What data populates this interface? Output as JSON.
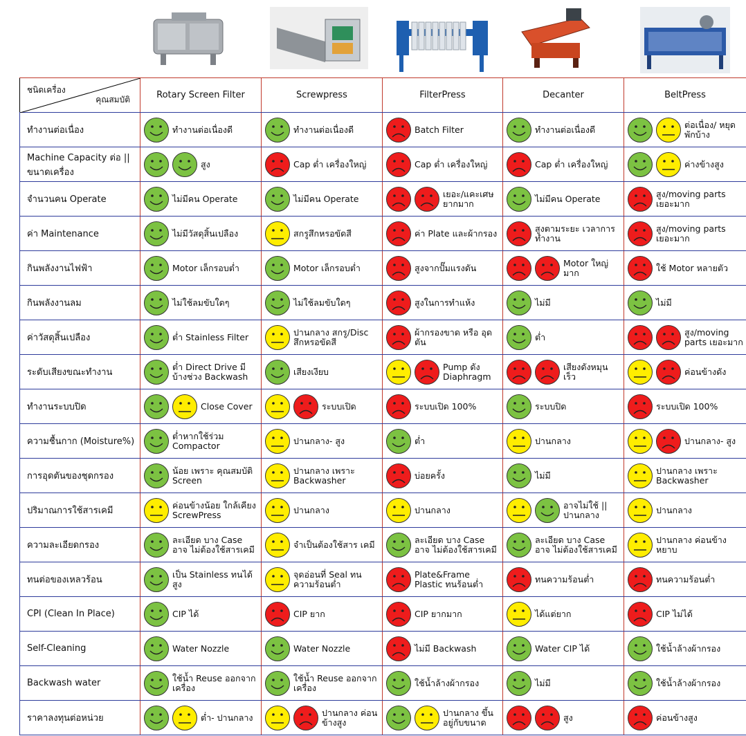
{
  "header": {
    "corner_top": "ชนิดเครื่อง",
    "corner_bottom": "คุณสมบัติ",
    "machines": [
      "Rotary Screen Filter",
      "Screwpress",
      "FilterPress",
      "Decanter",
      "BeltPress"
    ]
  },
  "colors": {
    "good": "#7cc242",
    "medium": "#ffed00",
    "bad": "#ee1c1c"
  },
  "rows": [
    {
      "label": "ทำงานต่อเนื่อง",
      "cells": [
        {
          "faces": [
            "good"
          ],
          "note": "ทำงานต่อเนื่องดี"
        },
        {
          "faces": [
            "good"
          ],
          "note": "ทำงานต่อเนื่องดี"
        },
        {
          "faces": [
            "bad"
          ],
          "note": "Batch Filter"
        },
        {
          "faces": [
            "good"
          ],
          "note": "ทำงานต่อเนื่องดี"
        },
        {
          "faces": [
            "good",
            "medium"
          ],
          "note": "ต่อเนื่อง/ หยุดพักบ้าง"
        }
      ]
    },
    {
      "label": "Machine Capacity ต่อ || ขนาดเครื่อง",
      "cells": [
        {
          "faces": [
            "good",
            "good"
          ],
          "note": "สูง"
        },
        {
          "faces": [
            "bad"
          ],
          "note": "Cap ต่ำ เครื่องใหญ่"
        },
        {
          "faces": [
            "bad"
          ],
          "note": "Cap ต่ำ เครื่องใหญ่"
        },
        {
          "faces": [
            "bad"
          ],
          "note": "Cap ต่ำ เครื่องใหญ่"
        },
        {
          "faces": [
            "good",
            "medium"
          ],
          "note": "ค่างข้างสูง"
        }
      ]
    },
    {
      "label": "จำนวนคน Operate",
      "cells": [
        {
          "faces": [
            "good"
          ],
          "note": "ไม่มีคน Operate"
        },
        {
          "faces": [
            "good"
          ],
          "note": "ไม่มีคน Operate"
        },
        {
          "faces": [
            "bad",
            "bad"
          ],
          "note": "เยอะ/แคะเศษ ยากมาก"
        },
        {
          "faces": [
            "good"
          ],
          "note": "ไม่มีคน Operate"
        },
        {
          "faces": [
            "bad"
          ],
          "note": "สูง/moving parts เยอะมาก"
        }
      ]
    },
    {
      "label": "ค่า Maintenance",
      "cells": [
        {
          "faces": [
            "good"
          ],
          "note": "ไม่มีวัสดุสิ้นเปลือง"
        },
        {
          "faces": [
            "medium"
          ],
          "note": "สกรูสึกหรอขัดสี"
        },
        {
          "faces": [
            "bad"
          ],
          "note": "ค่า Plate และผ้ากรอง"
        },
        {
          "faces": [
            "bad"
          ],
          "note": "สูงตามระยะ เวลาการทำงาน"
        },
        {
          "faces": [
            "bad"
          ],
          "note": "สูง/moving parts เยอะมาก"
        }
      ]
    },
    {
      "label": "กินพลังงานไฟฟ้า",
      "cells": [
        {
          "faces": [
            "good"
          ],
          "note": "Motor เล็กรอบต่ำ"
        },
        {
          "faces": [
            "good"
          ],
          "note": "Motor เล็กรอบต่ำ"
        },
        {
          "faces": [
            "bad"
          ],
          "note": "สูงจากปั๊มแรงดัน"
        },
        {
          "faces": [
            "bad",
            "bad"
          ],
          "note": "Motor ใหญ่ มาก"
        },
        {
          "faces": [
            "bad"
          ],
          "note": "ใช้ Motor หลายตัว"
        }
      ]
    },
    {
      "label": "กินพลังงานลม",
      "cells": [
        {
          "faces": [
            "good"
          ],
          "note": "ไม่ใช้ลมขับใดๆ"
        },
        {
          "faces": [
            "good"
          ],
          "note": "ไม่ใช้ลมขับใดๆ"
        },
        {
          "faces": [
            "bad"
          ],
          "note": "สูงในการทำแห้ง"
        },
        {
          "faces": [
            "good"
          ],
          "note": "ไม่มี"
        },
        {
          "faces": [
            "good"
          ],
          "note": "ไม่มี"
        }
      ]
    },
    {
      "label": "ค่าวัสดุสิ้นเปลือง",
      "cells": [
        {
          "faces": [
            "good"
          ],
          "note": "ต่ำ Stainless Filter"
        },
        {
          "faces": [
            "medium"
          ],
          "note": "ปานกลาง สกรู/Disc สึกหรอขัดสี"
        },
        {
          "faces": [
            "bad"
          ],
          "note": "ผ้ากรองขาด หรือ อุดตัน"
        },
        {
          "faces": [
            "good"
          ],
          "note": "ต่ำ"
        },
        {
          "faces": [
            "bad",
            "bad"
          ],
          "note": "สูง/moving parts เยอะมาก"
        }
      ]
    },
    {
      "label": "ระดับเสียงขณะทำงาน",
      "cells": [
        {
          "faces": [
            "good"
          ],
          "note": "ต่ำ Direct Drive มีบ้างช่วง Backwash"
        },
        {
          "faces": [
            "good"
          ],
          "note": "เสียงเงียบ"
        },
        {
          "faces": [
            "medium",
            "bad"
          ],
          "note": "Pump ดัง Diaphragm"
        },
        {
          "faces": [
            "bad",
            "bad"
          ],
          "note": "เสียงดังหมุน เร็ว"
        },
        {
          "faces": [
            "medium",
            "bad"
          ],
          "note": "ค่อนข้างดัง"
        }
      ]
    },
    {
      "label": "ทำงานระบบปิด",
      "cells": [
        {
          "faces": [
            "good",
            "medium"
          ],
          "note": "Close Cover"
        },
        {
          "faces": [
            "medium",
            "bad"
          ],
          "note": "ระบบเปิด"
        },
        {
          "faces": [
            "bad"
          ],
          "note": "ระบบเปิด 100%"
        },
        {
          "faces": [
            "good"
          ],
          "note": "ระบบปิด"
        },
        {
          "faces": [
            "bad"
          ],
          "note": "ระบบเปิด 100%"
        }
      ]
    },
    {
      "label": "ความชื้นกาก (Moisture%)",
      "cells": [
        {
          "faces": [
            "good"
          ],
          "note": "ต่ำหากใช้ร่วม Compactor"
        },
        {
          "faces": [
            "medium"
          ],
          "note": "ปานกลาง- สูง"
        },
        {
          "faces": [
            "good"
          ],
          "note": "ต่ำ"
        },
        {
          "faces": [
            "medium"
          ],
          "note": "ปานกลาง"
        },
        {
          "faces": [
            "medium",
            "bad"
          ],
          "note": "ปานกลาง- สูง"
        }
      ]
    },
    {
      "label": "การอุดตันของชุดกรอง",
      "cells": [
        {
          "faces": [
            "good"
          ],
          "note": "น้อย เพราะ คุณสมบัติ Screen"
        },
        {
          "faces": [
            "medium"
          ],
          "note": "ปานกลาง เพราะ Backwasher"
        },
        {
          "faces": [
            "bad"
          ],
          "note": "บ่อยครั้ง"
        },
        {
          "faces": [
            "good"
          ],
          "note": "ไม่มี"
        },
        {
          "faces": [
            "medium"
          ],
          "note": "ปานกลาง เพราะ Backwasher"
        }
      ]
    },
    {
      "label": "ปริมาณการใช้สารเคมี",
      "cells": [
        {
          "faces": [
            "medium"
          ],
          "note": "ค่อนข้างน้อย ใกล้เคียง ScrewPress"
        },
        {
          "faces": [
            "medium"
          ],
          "note": "ปานกลาง"
        },
        {
          "faces": [
            "medium"
          ],
          "note": "ปานกลาง"
        },
        {
          "faces": [
            "medium",
            "good"
          ],
          "note": "อาจไม่ใช้ ||ปานกลาง"
        },
        {
          "faces": [
            "medium"
          ],
          "note": "ปานกลาง"
        }
      ]
    },
    {
      "label": "ความละเอียดกรอง",
      "cells": [
        {
          "faces": [
            "good"
          ],
          "note": "ละเอียด บาง Case อาจ ไม่ต้องใช้สารเคมี"
        },
        {
          "faces": [
            "medium"
          ],
          "note": "จำเป็นต้องใช้สาร เคมี"
        },
        {
          "faces": [
            "good"
          ],
          "note": "ละเอียด บาง Case อาจ ไม่ต้องใช้สารเคมี"
        },
        {
          "faces": [
            "good"
          ],
          "note": "ละเอียด บาง Case อาจ ไม่ต้องใช้สารเคมี"
        },
        {
          "faces": [
            "medium"
          ],
          "note": "ปานกลาง ค่อนข้างหยาบ"
        }
      ]
    },
    {
      "label": "ทนต่อของเหลวร้อน",
      "cells": [
        {
          "faces": [
            "good"
          ],
          "note": "เป็น Stainless ทนได้สูง"
        },
        {
          "faces": [
            "medium"
          ],
          "note": "จุดอ่อนที่ Seal ทนความร้อนต่ำ"
        },
        {
          "faces": [
            "bad"
          ],
          "note": "Plate&Frame Plastic ทนร้อนต่ำ"
        },
        {
          "faces": [
            "bad"
          ],
          "note": "ทนความร้อนต่ำ"
        },
        {
          "faces": [
            "bad"
          ],
          "note": "ทนความร้อนต่ำ"
        }
      ]
    },
    {
      "label": "CPI (Clean In Place)",
      "cells": [
        {
          "faces": [
            "good"
          ],
          "note": "CIP ได้"
        },
        {
          "faces": [
            "bad"
          ],
          "note": "CIP ยาก"
        },
        {
          "faces": [
            "bad"
          ],
          "note": "CIP ยากมาก"
        },
        {
          "faces": [
            "medium"
          ],
          "note": "ได้แต่ยาก"
        },
        {
          "faces": [
            "bad"
          ],
          "note": "CIP ไม่ได้"
        }
      ]
    },
    {
      "label": "Self-Cleaning",
      "cells": [
        {
          "faces": [
            "good"
          ],
          "note": "Water Nozzle"
        },
        {
          "faces": [
            "good"
          ],
          "note": "Water Nozzle"
        },
        {
          "faces": [
            "bad"
          ],
          "note": "ไม่มี Backwash"
        },
        {
          "faces": [
            "good"
          ],
          "note": "Water CIP ได้"
        },
        {
          "faces": [
            "good"
          ],
          "note": "ใช้น้ำล้างผ้ากรอง"
        }
      ]
    },
    {
      "label": "Backwash water",
      "cells": [
        {
          "faces": [
            "good"
          ],
          "note": "ใช้น้ำ Reuse ออกจากเครื่อง"
        },
        {
          "faces": [
            "good"
          ],
          "note": "ใช้น้ำ Reuse ออกจากเครื่อง"
        },
        {
          "faces": [
            "good"
          ],
          "note": "ใช้น้ำล้างผ้ากรอง"
        },
        {
          "faces": [
            "good"
          ],
          "note": "ไม่มี"
        },
        {
          "faces": [
            "good"
          ],
          "note": "ใช้น้ำล้างผ้ากรอง"
        }
      ]
    },
    {
      "label": "ราคาลงทุนต่อหน่วย",
      "cells": [
        {
          "faces": [
            "good",
            "medium"
          ],
          "note": "ต่ำ- ปานกลาง"
        },
        {
          "faces": [
            "medium",
            "bad"
          ],
          "note": "ปานกลาง ค่อนข้างสูง"
        },
        {
          "faces": [
            "good",
            "medium"
          ],
          "note": "ปานกลาง ขึ้นอยู่กับขนาด"
        },
        {
          "faces": [
            "bad",
            "bad"
          ],
          "note": "สูง"
        },
        {
          "faces": [
            "bad"
          ],
          "note": "ค่อนข้างสูง"
        }
      ]
    }
  ]
}
